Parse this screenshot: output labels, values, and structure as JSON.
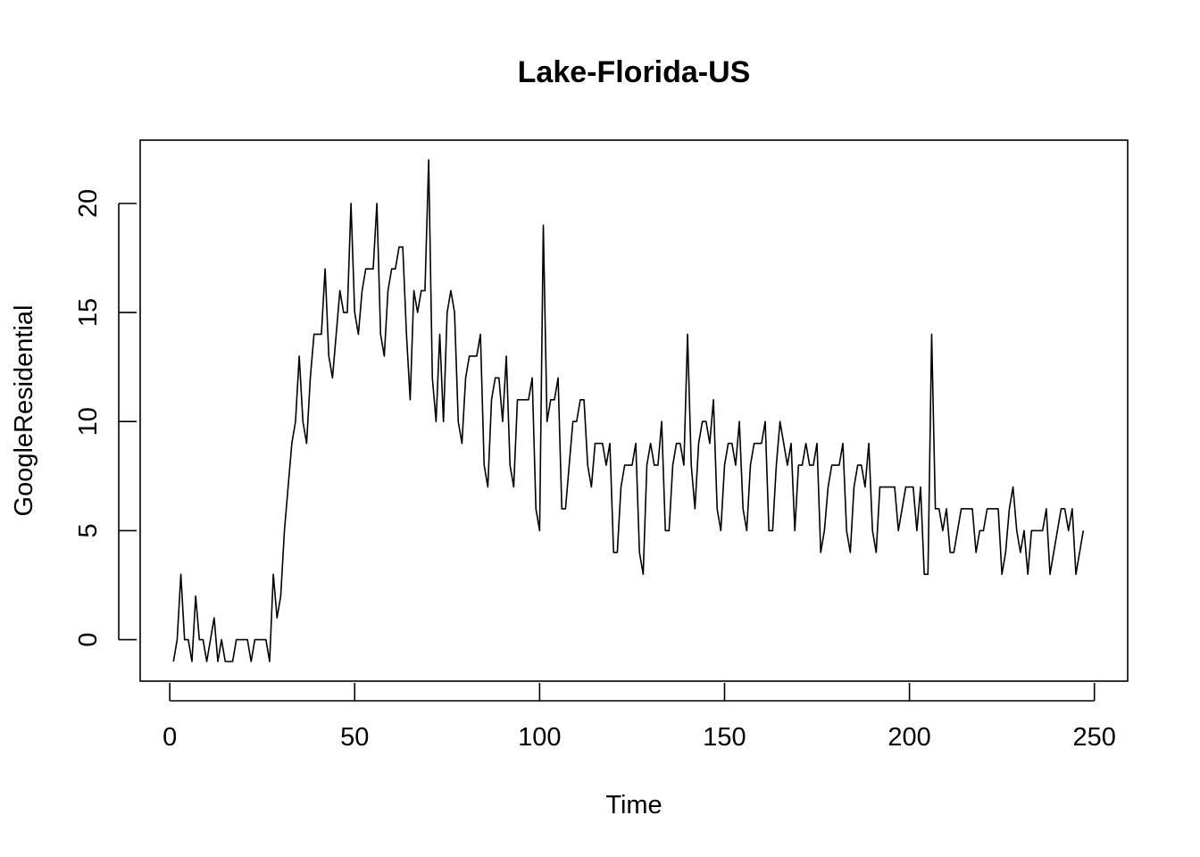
{
  "chart_data": {
    "type": "line",
    "title": "Lake-Florida-US",
    "xlabel": "Time",
    "ylabel": "GoogleResidential",
    "xlim": [
      -8,
      259
    ],
    "ylim": [
      -1.9,
      22.9
    ],
    "x_ticks": [
      0,
      50,
      100,
      150,
      200,
      250
    ],
    "y_ticks": [
      0,
      5,
      10,
      15,
      20
    ],
    "grid": false,
    "legend": "none",
    "x_start": 1,
    "series": [
      {
        "values": [
          -1,
          0,
          3,
          0,
          0,
          -1,
          2,
          0,
          0,
          -1,
          0,
          1,
          -1,
          0,
          -1,
          -1,
          -1,
          0,
          0,
          0,
          0,
          -1,
          0,
          0,
          0,
          0,
          -1,
          3,
          1,
          2,
          5,
          7,
          9,
          10,
          13,
          10,
          9,
          12,
          14,
          14,
          14,
          17,
          13,
          12,
          14,
          16,
          15,
          15,
          20,
          15,
          14,
          16,
          17,
          17,
          17,
          20,
          14,
          13,
          16,
          17,
          17,
          18,
          18,
          14,
          11,
          16,
          15,
          16,
          16,
          22,
          12,
          10,
          14,
          10,
          15,
          16,
          15,
          10,
          9,
          12,
          13,
          13,
          13,
          14,
          8,
          7,
          11,
          12,
          12,
          10,
          13,
          8,
          7,
          11,
          11,
          11,
          11,
          12,
          6,
          5,
          19,
          10,
          11,
          11,
          12,
          6,
          6,
          8,
          10,
          10,
          11,
          11,
          8,
          7,
          9,
          9,
          9,
          8,
          9,
          4,
          4,
          7,
          8,
          8,
          8,
          9,
          4,
          3,
          8,
          9,
          8,
          8,
          10,
          5,
          5,
          8,
          9,
          9,
          8,
          14,
          8,
          6,
          9,
          10,
          10,
          9,
          11,
          6,
          5,
          8,
          9,
          9,
          8,
          10,
          6,
          5,
          8,
          9,
          9,
          9,
          10,
          5,
          5,
          8,
          10,
          9,
          8,
          9,
          5,
          8,
          8,
          9,
          8,
          8,
          9,
          4,
          5,
          7,
          8,
          8,
          8,
          9,
          5,
          4,
          7,
          8,
          8,
          7,
          9,
          5,
          4,
          7,
          7,
          7,
          7,
          7,
          5,
          6,
          7,
          7,
          7,
          5,
          7,
          3,
          3,
          14,
          6,
          6,
          5,
          6,
          4,
          4,
          5,
          6,
          6,
          6,
          6,
          4,
          5,
          5,
          6,
          6,
          6,
          6,
          3,
          4,
          6,
          7,
          5,
          4,
          5,
          3,
          5,
          5,
          5,
          5,
          6,
          3,
          4,
          5,
          6,
          6,
          5,
          6,
          3,
          4,
          5
        ]
      }
    ]
  }
}
